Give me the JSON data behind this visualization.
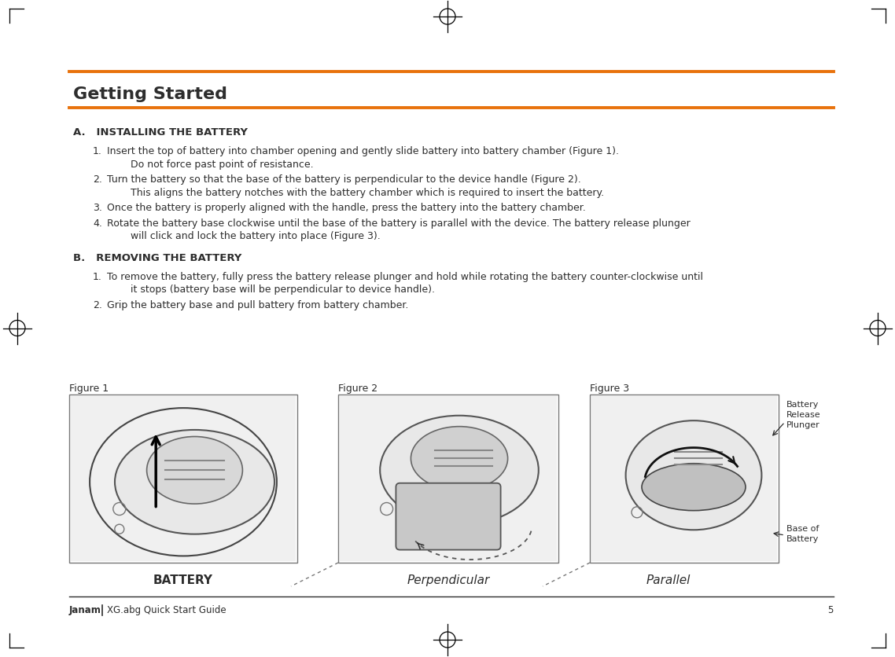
{
  "bg_color": "#ffffff",
  "orange_color": "#E8720C",
  "dark_gray": "#2d2d2d",
  "black": "#000000",
  "title": "Getting Started",
  "title_fontsize": 15,
  "section_a_header": "A.   INSTALLING THE BATTERY",
  "section_b_header": "B.   REMOVING THE BATTERY",
  "section_a_items": [
    [
      "Insert the top of battery into chamber opening and gently slide battery into battery chamber (Figure 1).",
      "Do not force past point of resistance."
    ],
    [
      "Turn the battery so that the base of the battery is perpendicular to the device handle (Figure 2).",
      "This aligns the battery notches with the battery chamber which is required to insert the battery."
    ],
    [
      "Once the battery is properly aligned with the handle, press the battery into the battery chamber."
    ],
    [
      "Rotate the battery base clockwise until the base of the battery is parallel with the device. The battery release plunger",
      "will click and lock the battery into place (Figure 3)."
    ]
  ],
  "section_b_items": [
    [
      "To remove the battery, fully press the battery release plunger and hold while rotating the battery counter-clockwise until",
      "it stops (battery base will be perpendicular to device handle)."
    ],
    [
      "Grip the battery base and pull battery from battery chamber."
    ]
  ],
  "footer_left": "Janam",
  "footer_doc": "XG.abg Quick Start Guide",
  "footer_page": "5",
  "fig1_label": "Figure 1",
  "fig2_label": "Figure 2",
  "fig3_label": "Figure 3",
  "fig1_caption": "BATTERY",
  "fig2_caption": "Perpendicular",
  "fig3_caption": "Parallel",
  "fig3_ann1": "Battery\nRelease\nPlunger",
  "fig3_ann2": "Base of\nBattery"
}
